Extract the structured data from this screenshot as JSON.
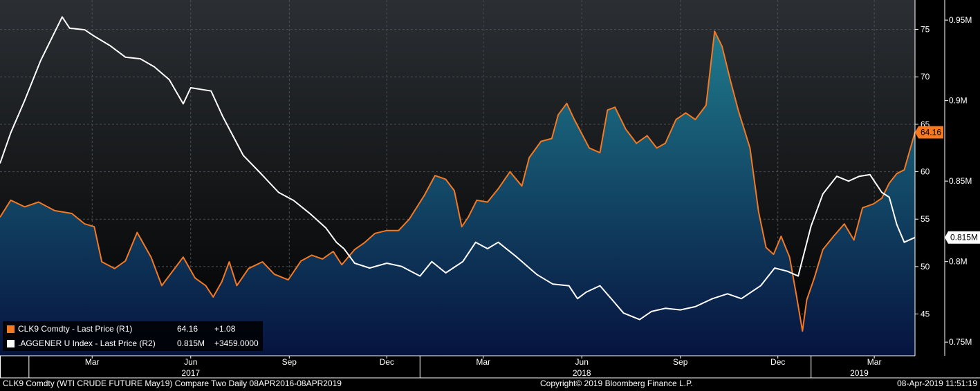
{
  "colors": {
    "orange": "#f47920",
    "white": "#ffffff",
    "background": "#000000",
    "area_top": "#1f7a8c",
    "area_bottom": "#06133f"
  },
  "legend": {
    "series1_label": "CLK9 Comdty - Last Price (R1)",
    "series1_value": "64.16",
    "series1_change": "+1.08",
    "series2_label": ".AGGENER U Index - Last Price (R2)",
    "series2_value": "0.815M",
    "series2_change": "+3459.0000"
  },
  "footer": {
    "left": "CLK9 Comdty (WTI CRUDE FUTURE  May19) Compare Two  Daily 08APR2016-08APR2019",
    "center": "Copyright© 2019 Bloomberg Finance L.P.",
    "right": "08-Apr-2019 11:51:19"
  },
  "chart_data": {
    "type": "line",
    "x_range": [
      "2016-12-05",
      "2019-04-08"
    ],
    "x_ticks": [
      {
        "date": "2017-03-01",
        "label": "Mar"
      },
      {
        "date": "2017-06-01",
        "label": "Jun"
      },
      {
        "date": "2017-09-01",
        "label": "Sep"
      },
      {
        "date": "2017-12-01",
        "label": "Dec"
      },
      {
        "date": "2018-03-01",
        "label": "Mar"
      },
      {
        "date": "2018-06-01",
        "label": "Jun"
      },
      {
        "date": "2018-09-01",
        "label": "Sep"
      },
      {
        "date": "2018-12-01",
        "label": "Dec"
      },
      {
        "date": "2019-03-01",
        "label": "Mar"
      }
    ],
    "year_labels": [
      {
        "date": "2017-06-01",
        "label": "2017"
      },
      {
        "date": "2018-06-01",
        "label": "2018"
      },
      {
        "date": "2019-02-15",
        "label": "2019"
      }
    ],
    "year_dividers": [
      "2017-01-01",
      "2018-01-01",
      "2019-01-01"
    ],
    "axis_r1": {
      "min": 40.6,
      "max": 78.1,
      "ticks": [
        45,
        50,
        55,
        60,
        65,
        70,
        75
      ]
    },
    "axis_r2": {
      "min": 0.7415,
      "max": 0.9625,
      "ticks": [
        {
          "v": 0.75,
          "label": "0.75M"
        },
        {
          "v": 0.8,
          "label": "0.8M"
        },
        {
          "v": 0.85,
          "label": "0.85M"
        },
        {
          "v": 0.9,
          "label": "0.9M"
        },
        {
          "v": 0.95,
          "label": "0.95M"
        }
      ]
    },
    "grid": true,
    "series": [
      {
        "name": "CLK9 Comdty - Last Price (R1)",
        "axis": "R1",
        "last_label": "64.16",
        "points": [
          [
            "2016-12-05",
            55.2
          ],
          [
            "2016-12-15",
            57.0
          ],
          [
            "2016-12-28",
            56.3
          ],
          [
            "2017-01-10",
            56.8
          ],
          [
            "2017-01-25",
            55.9
          ],
          [
            "2017-02-10",
            55.6
          ],
          [
            "2017-02-22",
            54.5
          ],
          [
            "2017-03-03",
            54.2
          ],
          [
            "2017-03-10",
            50.5
          ],
          [
            "2017-03-22",
            49.8
          ],
          [
            "2017-04-01",
            50.6
          ],
          [
            "2017-04-12",
            53.6
          ],
          [
            "2017-04-25",
            51.0
          ],
          [
            "2017-05-05",
            48.0
          ],
          [
            "2017-05-15",
            49.5
          ],
          [
            "2017-05-25",
            51.0
          ],
          [
            "2017-06-05",
            48.8
          ],
          [
            "2017-06-15",
            48.0
          ],
          [
            "2017-06-22",
            46.8
          ],
          [
            "2017-06-30",
            48.4
          ],
          [
            "2017-07-07",
            50.5
          ],
          [
            "2017-07-14",
            48.0
          ],
          [
            "2017-07-25",
            49.8
          ],
          [
            "2017-08-07",
            50.5
          ],
          [
            "2017-08-18",
            49.2
          ],
          [
            "2017-08-31",
            48.6
          ],
          [
            "2017-09-12",
            50.6
          ],
          [
            "2017-09-22",
            51.2
          ],
          [
            "2017-10-02",
            50.8
          ],
          [
            "2017-10-12",
            51.6
          ],
          [
            "2017-10-20",
            50.2
          ],
          [
            "2017-11-01",
            51.8
          ],
          [
            "2017-11-10",
            52.5
          ],
          [
            "2017-11-20",
            53.5
          ],
          [
            "2017-12-01",
            53.8
          ],
          [
            "2017-12-12",
            53.8
          ],
          [
            "2017-12-22",
            55.0
          ],
          [
            "2018-01-05",
            57.5
          ],
          [
            "2018-01-15",
            59.6
          ],
          [
            "2018-01-25",
            59.2
          ],
          [
            "2018-02-02",
            58.0
          ],
          [
            "2018-02-09",
            54.2
          ],
          [
            "2018-02-15",
            55.2
          ],
          [
            "2018-02-23",
            57.0
          ],
          [
            "2018-03-05",
            56.8
          ],
          [
            "2018-03-15",
            58.2
          ],
          [
            "2018-03-26",
            60.0
          ],
          [
            "2018-04-06",
            58.5
          ],
          [
            "2018-04-13",
            61.5
          ],
          [
            "2018-04-24",
            63.2
          ],
          [
            "2018-05-04",
            63.5
          ],
          [
            "2018-05-10",
            66.0
          ],
          [
            "2018-05-18",
            67.2
          ],
          [
            "2018-05-25",
            65.5
          ],
          [
            "2018-06-01",
            64.0
          ],
          [
            "2018-06-08",
            62.5
          ],
          [
            "2018-06-18",
            62.0
          ],
          [
            "2018-06-25",
            66.5
          ],
          [
            "2018-07-02",
            66.8
          ],
          [
            "2018-07-12",
            64.5
          ],
          [
            "2018-07-22",
            63.0
          ],
          [
            "2018-08-01",
            63.8
          ],
          [
            "2018-08-10",
            62.5
          ],
          [
            "2018-08-18",
            63.0
          ],
          [
            "2018-08-28",
            65.5
          ],
          [
            "2018-09-06",
            66.2
          ],
          [
            "2018-09-15",
            65.5
          ],
          [
            "2018-09-25",
            67.0
          ],
          [
            "2018-10-03",
            74.8
          ],
          [
            "2018-10-10",
            73.2
          ],
          [
            "2018-10-18",
            69.5
          ],
          [
            "2018-10-25",
            66.5
          ],
          [
            "2018-11-05",
            62.5
          ],
          [
            "2018-11-13",
            55.8
          ],
          [
            "2018-11-20",
            52.0
          ],
          [
            "2018-11-27",
            51.3
          ],
          [
            "2018-12-04",
            53.2
          ],
          [
            "2018-12-12",
            51.0
          ],
          [
            "2018-12-18",
            47.2
          ],
          [
            "2018-12-24",
            43.2
          ],
          [
            "2018-12-28",
            46.5
          ],
          [
            "2019-01-04",
            48.8
          ],
          [
            "2019-01-12",
            51.8
          ],
          [
            "2019-01-22",
            53.2
          ],
          [
            "2019-02-01",
            54.5
          ],
          [
            "2019-02-10",
            52.8
          ],
          [
            "2019-02-18",
            56.2
          ],
          [
            "2019-02-28",
            56.6
          ],
          [
            "2019-03-08",
            57.2
          ],
          [
            "2019-03-15",
            58.8
          ],
          [
            "2019-03-22",
            59.8
          ],
          [
            "2019-03-29",
            60.2
          ],
          [
            "2019-04-03",
            62.2
          ],
          [
            "2019-04-08",
            64.16
          ]
        ]
      },
      {
        "name": ".AGGENER U Index - Last Price (R2)",
        "axis": "R2",
        "last_label": "0.815M",
        "points": [
          [
            "2016-12-05",
            0.861
          ],
          [
            "2016-12-15",
            0.88
          ],
          [
            "2016-12-28",
            0.9
          ],
          [
            "2017-01-12",
            0.925
          ],
          [
            "2017-02-01",
            0.952
          ],
          [
            "2017-02-08",
            0.945
          ],
          [
            "2017-02-22",
            0.944
          ],
          [
            "2017-03-03",
            0.94
          ],
          [
            "2017-03-18",
            0.934
          ],
          [
            "2017-04-01",
            0.927
          ],
          [
            "2017-04-15",
            0.926
          ],
          [
            "2017-04-28",
            0.921
          ],
          [
            "2017-05-12",
            0.913
          ],
          [
            "2017-05-25",
            0.898
          ],
          [
            "2017-06-01",
            0.908
          ],
          [
            "2017-06-20",
            0.906
          ],
          [
            "2017-07-01",
            0.89
          ],
          [
            "2017-07-20",
            0.866
          ],
          [
            "2017-08-05",
            0.855
          ],
          [
            "2017-08-22",
            0.843
          ],
          [
            "2017-09-05",
            0.838
          ],
          [
            "2017-09-20",
            0.83
          ],
          [
            "2017-10-05",
            0.821
          ],
          [
            "2017-10-15",
            0.812
          ],
          [
            "2017-10-22",
            0.808
          ],
          [
            "2017-11-01",
            0.799
          ],
          [
            "2017-11-15",
            0.796
          ],
          [
            "2017-12-01",
            0.799
          ],
          [
            "2017-12-15",
            0.797
          ],
          [
            "2018-01-01",
            0.791
          ],
          [
            "2018-01-12",
            0.8
          ],
          [
            "2018-01-25",
            0.793
          ],
          [
            "2018-02-10",
            0.8
          ],
          [
            "2018-02-22",
            0.812
          ],
          [
            "2018-03-05",
            0.808
          ],
          [
            "2018-03-15",
            0.812
          ],
          [
            "2018-04-01",
            0.803
          ],
          [
            "2018-04-20",
            0.792
          ],
          [
            "2018-05-05",
            0.786
          ],
          [
            "2018-05-20",
            0.785
          ],
          [
            "2018-05-28",
            0.777
          ],
          [
            "2018-06-05",
            0.781
          ],
          [
            "2018-06-18",
            0.785
          ],
          [
            "2018-07-01",
            0.775
          ],
          [
            "2018-07-10",
            0.768
          ],
          [
            "2018-07-25",
            0.764
          ],
          [
            "2018-08-05",
            0.769
          ],
          [
            "2018-08-18",
            0.771
          ],
          [
            "2018-09-01",
            0.77
          ],
          [
            "2018-09-15",
            0.772
          ],
          [
            "2018-10-01",
            0.777
          ],
          [
            "2018-10-15",
            0.78
          ],
          [
            "2018-10-28",
            0.777
          ],
          [
            "2018-11-15",
            0.785
          ],
          [
            "2018-11-28",
            0.796
          ],
          [
            "2018-12-10",
            0.794
          ],
          [
            "2018-12-20",
            0.791
          ],
          [
            "2019-01-01",
            0.822
          ],
          [
            "2019-01-12",
            0.842
          ],
          [
            "2019-01-25",
            0.853
          ],
          [
            "2019-02-05",
            0.85
          ],
          [
            "2019-02-15",
            0.853
          ],
          [
            "2019-02-25",
            0.854
          ],
          [
            "2019-03-08",
            0.843
          ],
          [
            "2019-03-15",
            0.84
          ],
          [
            "2019-03-22",
            0.823
          ],
          [
            "2019-03-29",
            0.812
          ],
          [
            "2019-04-08",
            0.815
          ]
        ]
      }
    ]
  }
}
